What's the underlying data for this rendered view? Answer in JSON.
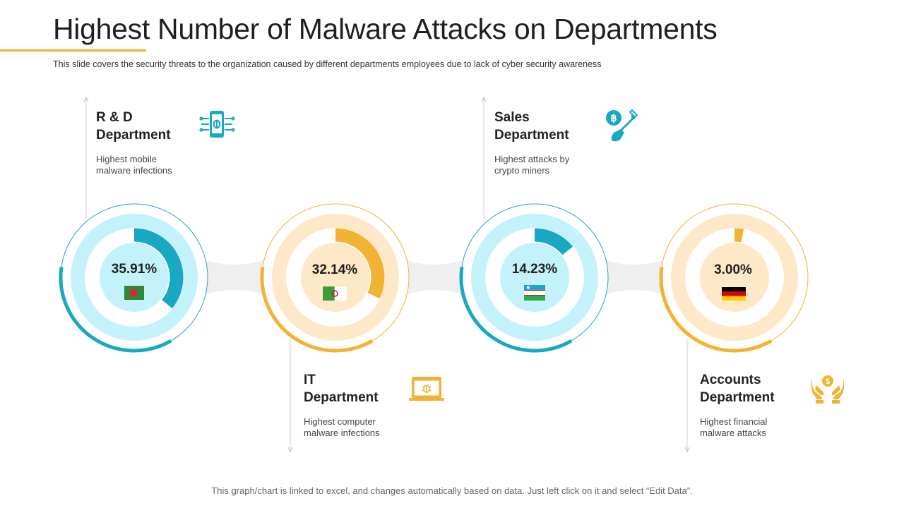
{
  "title": "Highest Number of Malware Attacks on Departments",
  "subtitle": "This slide covers the security threats to the organization caused by different departments employees due to lack of cyber security awareness",
  "footer": "This graph/chart is linked to excel,  and changes automatically based on data. Just left click on it and select “Edit Data”.",
  "colors": {
    "teal": "#19a8c3",
    "teal_light": "#c4f2fa",
    "orange": "#f2b233",
    "orange_light": "#fde9c7",
    "connector": "#efefef"
  },
  "departments": [
    {
      "name": "R & D\nDepartment",
      "desc": "Highest mobile\nmalware infections",
      "percent_label": "35.91%",
      "icon": "mobile-bug-icon",
      "flag": "bangladesh-flag-icon"
    },
    {
      "name": "IT\nDepartment",
      "desc": "Highest computer\nmalware infections",
      "percent_label": "32.14%",
      "icon": "laptop-bug-icon",
      "flag": "algeria-flag-icon"
    },
    {
      "name": "Sales\nDepartment",
      "desc": "Highest attacks by\ncrypto miners",
      "percent_label": "14.23%",
      "icon": "bitcoin-shovel-icon",
      "flag": "uzbekistan-flag-icon"
    },
    {
      "name": "Accounts\nDepartment",
      "desc": "Highest financial\nmalware attacks",
      "percent_label": "3.00%",
      "icon": "hands-dollar-icon",
      "flag": "germany-flag-icon"
    }
  ],
  "chart_data": {
    "type": "pie",
    "categories": [
      "R & D Department",
      "IT Department",
      "Sales Department",
      "Accounts Department"
    ],
    "values": [
      35.91,
      32.14,
      14.23,
      3.0
    ],
    "unit": "%"
  }
}
